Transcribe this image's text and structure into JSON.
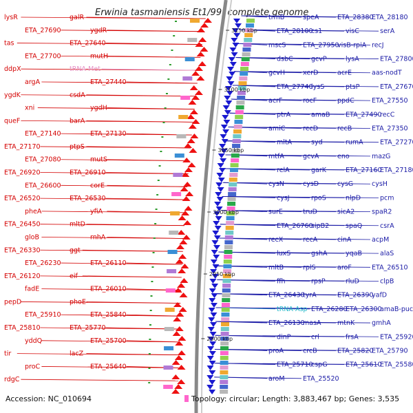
{
  "title": "Erwinia tasmaniensis Et1/99, complete genome",
  "accession": "Accession: NC_010694",
  "topology": "Topology: circular; Length: 3,883,467 bp; Genes: 3,535",
  "kbp_marks": [
    "3150 kbp",
    "3100 kbp",
    "3050 kbp",
    "3000 kbp",
    "2950 kbp",
    "2900 kbp"
  ],
  "left_labels": [
    {
      "text": "lysR",
      "color": "red"
    },
    {
      "text": "galR",
      "color": "red"
    },
    {
      "text": "ETA_27690",
      "color": "red"
    },
    {
      "text": "ygdR",
      "color": "red"
    },
    {
      "text": "tas",
      "color": "red"
    },
    {
      "text": "ETA_27640",
      "color": "red"
    },
    {
      "text": "ETA_27700",
      "color": "red"
    },
    {
      "text": "mutH",
      "color": "red"
    },
    {
      "text": "ddpX",
      "color": "red"
    },
    {
      "text": "tRNA-Met",
      "color": "pink"
    },
    {
      "text": "argA",
      "color": "red"
    },
    {
      "text": "ETA_27440",
      "color": "red"
    },
    {
      "text": "ygdK",
      "color": "red"
    },
    {
      "text": "csdA",
      "color": "red"
    },
    {
      "text": "xni",
      "color": "red"
    },
    {
      "text": "ygdH",
      "color": "red"
    },
    {
      "text": "queF",
      "color": "red"
    },
    {
      "text": "barA",
      "color": "red"
    },
    {
      "text": "ETA_27140",
      "color": "red"
    },
    {
      "text": "ETA_27130",
      "color": "red"
    },
    {
      "text": "ETA_27170",
      "color": "red"
    },
    {
      "text": "ptpS",
      "color": "red"
    },
    {
      "text": "ETA_27080",
      "color": "red"
    },
    {
      "text": "mutS",
      "color": "red"
    },
    {
      "text": "ETA_26920",
      "color": "red"
    },
    {
      "text": "ETA_26910",
      "color": "red"
    },
    {
      "text": "ETA_26600",
      "color": "red"
    },
    {
      "text": "corE",
      "color": "red"
    },
    {
      "text": "ETA_26520",
      "color": "red"
    },
    {
      "text": "ETA_26530",
      "color": "red"
    },
    {
      "text": "pheA",
      "color": "red"
    },
    {
      "text": "yfiA",
      "color": "red"
    },
    {
      "text": "ETA_26450",
      "color": "red"
    },
    {
      "text": "mltD",
      "color": "red"
    },
    {
      "text": "gloB",
      "color": "red"
    },
    {
      "text": "rnhA",
      "color": "red"
    },
    {
      "text": "ETA_26330",
      "color": "red"
    },
    {
      "text": "ggt",
      "color": "red"
    },
    {
      "text": "ETA_26230",
      "color": "red"
    },
    {
      "text": "ETA_26110",
      "color": "red"
    },
    {
      "text": "ETA_26120",
      "color": "red"
    },
    {
      "text": "eif",
      "color": "red"
    },
    {
      "text": "fadE",
      "color": "red"
    },
    {
      "text": "ETA_26010",
      "color": "red"
    },
    {
      "text": "pepD",
      "color": "red"
    },
    {
      "text": "phoE",
      "color": "red"
    },
    {
      "text": "ETA_25910",
      "color": "red"
    },
    {
      "text": "ETA_25840",
      "color": "red"
    },
    {
      "text": "ETA_25810",
      "color": "red"
    },
    {
      "text": "ETA_25770",
      "color": "red"
    },
    {
      "text": "yddQ",
      "color": "red"
    },
    {
      "text": "ETA_25700",
      "color": "red"
    },
    {
      "text": "tir",
      "color": "red"
    },
    {
      "text": "lacZ",
      "color": "red"
    },
    {
      "text": "proC",
      "color": "red"
    },
    {
      "text": "ETA_25640",
      "color": "red"
    },
    {
      "text": "rdgC",
      "color": "red"
    }
  ],
  "right_labels": [
    {
      "text": "trmB",
      "color": "blue"
    },
    {
      "text": "speA",
      "color": "blue"
    },
    {
      "text": "ETA_28380",
      "color": "blue"
    },
    {
      "text": "ETA_28180",
      "color": "blue"
    },
    {
      "text": "ETA_28100",
      "color": "blue"
    },
    {
      "text": "cs1",
      "color": "blue"
    },
    {
      "text": "visC",
      "color": "blue"
    },
    {
      "text": "serA",
      "color": "blue"
    },
    {
      "text": "mscS",
      "color": "blue"
    },
    {
      "text": "ETA_27950",
      "color": "blue"
    },
    {
      "text": "visB-rpiA",
      "color": "blue"
    },
    {
      "text": "recJ",
      "color": "blue"
    },
    {
      "text": "dsbC",
      "color": "blue"
    },
    {
      "text": "gcvP",
      "color": "blue"
    },
    {
      "text": "lysA",
      "color": "blue"
    },
    {
      "text": "ETA_27800",
      "color": "blue"
    },
    {
      "text": "gcvH",
      "color": "blue"
    },
    {
      "text": "xerD",
      "color": "blue"
    },
    {
      "text": "acrE",
      "color": "blue"
    },
    {
      "text": "aas-nodT",
      "color": "blue"
    },
    {
      "text": "ETA_27740",
      "color": "blue"
    },
    {
      "text": "lysS",
      "color": "blue"
    },
    {
      "text": "ptsP",
      "color": "blue"
    },
    {
      "text": "ETA_27670",
      "color": "blue"
    },
    {
      "text": "acrF",
      "color": "blue"
    },
    {
      "text": "rocF",
      "color": "blue"
    },
    {
      "text": "ppdC",
      "color": "blue"
    },
    {
      "text": "ETA_27550",
      "color": "blue"
    },
    {
      "text": "ptrA",
      "color": "blue"
    },
    {
      "text": "amaB",
      "color": "blue"
    },
    {
      "text": "ETA_27490",
      "color": "blue"
    },
    {
      "text": "recC",
      "color": "blue"
    },
    {
      "text": "amiC",
      "color": "blue"
    },
    {
      "text": "recD",
      "color": "blue"
    },
    {
      "text": "recB",
      "color": "blue"
    },
    {
      "text": "ETA_27350",
      "color": "blue"
    },
    {
      "text": "mltA",
      "color": "blue"
    },
    {
      "text": "syd",
      "color": "blue"
    },
    {
      "text": "rumA",
      "color": "blue"
    },
    {
      "text": "ETA_27270",
      "color": "blue"
    },
    {
      "text": "mtfA",
      "color": "blue"
    },
    {
      "text": "gcvA",
      "color": "blue"
    },
    {
      "text": "eno",
      "color": "blue"
    },
    {
      "text": "mazG",
      "color": "blue"
    },
    {
      "text": "relA",
      "color": "blue"
    },
    {
      "text": "garK",
      "color": "blue"
    },
    {
      "text": "ETA_27160",
      "color": "blue"
    },
    {
      "text": "ETA_27180",
      "color": "blue"
    },
    {
      "text": "cysN",
      "color": "blue"
    },
    {
      "text": "cysD",
      "color": "blue"
    },
    {
      "text": "cysG",
      "color": "blue"
    },
    {
      "text": "cysH",
      "color": "blue"
    },
    {
      "text": "cysJ",
      "color": "blue"
    },
    {
      "text": "rpoS",
      "color": "blue"
    },
    {
      "text": "nlpD",
      "color": "blue"
    },
    {
      "text": "pcm",
      "color": "blue"
    },
    {
      "text": "surE",
      "color": "blue"
    },
    {
      "text": "truD",
      "color": "blue"
    },
    {
      "text": "sicA2",
      "color": "blue"
    },
    {
      "text": "spaR2",
      "color": "blue"
    },
    {
      "text": "ETA_26760",
      "color": "blue"
    },
    {
      "text": "sipB2",
      "color": "blue"
    },
    {
      "text": "spaQ",
      "color": "blue"
    },
    {
      "text": "csrA",
      "color": "blue"
    },
    {
      "text": "recX",
      "color": "blue"
    },
    {
      "text": "recA",
      "color": "blue"
    },
    {
      "text": "cinA",
      "color": "blue"
    },
    {
      "text": "acpM",
      "color": "blue"
    },
    {
      "text": "luxS",
      "color": "blue"
    },
    {
      "text": "gshA",
      "color": "blue"
    },
    {
      "text": "yqaB",
      "color": "blue"
    },
    {
      "text": "alaS",
      "color": "blue"
    },
    {
      "text": "mltB",
      "color": "blue"
    },
    {
      "text": "rplS",
      "color": "blue"
    },
    {
      "text": "aroF",
      "color": "blue"
    },
    {
      "text": "ETA_26510",
      "color": "blue"
    },
    {
      "text": "ffh",
      "color": "blue"
    },
    {
      "text": "rpsP",
      "color": "blue"
    },
    {
      "text": "rluD",
      "color": "blue"
    },
    {
      "text": "clpB",
      "color": "blue"
    },
    {
      "text": "ETA_26430",
      "color": "blue"
    },
    {
      "text": "tyrA",
      "color": "blue"
    },
    {
      "text": "ETA_26390",
      "color": "blue"
    },
    {
      "text": "yafD",
      "color": "blue"
    },
    {
      "text": "tRNA-Asp",
      "color": "cyan"
    },
    {
      "text": "ETA_26280",
      "color": "blue"
    },
    {
      "text": "ETA_26300",
      "color": "blue"
    },
    {
      "text": "amaB-pucG",
      "color": "blue"
    },
    {
      "text": "ETA_26130",
      "color": "blue"
    },
    {
      "text": "masA",
      "color": "blue"
    },
    {
      "text": "mtnK",
      "color": "blue"
    },
    {
      "text": "gmhA",
      "color": "blue"
    },
    {
      "text": "dinP",
      "color": "blue"
    },
    {
      "text": "crl",
      "color": "blue"
    },
    {
      "text": "frsA",
      "color": "blue"
    },
    {
      "text": "ETA_25920",
      "color": "blue"
    },
    {
      "text": "proA",
      "color": "blue"
    },
    {
      "text": "crcB",
      "color": "blue"
    },
    {
      "text": "ETA_25820",
      "color": "blue"
    },
    {
      "text": "ETA_25790",
      "color": "blue"
    },
    {
      "text": "ETA_25710",
      "color": "blue"
    },
    {
      "text": "cspG",
      "color": "blue"
    },
    {
      "text": "ETA_25610",
      "color": "blue"
    },
    {
      "text": "ETA_25580",
      "color": "blue"
    },
    {
      "text": "aroM",
      "color": "blue"
    },
    {
      "text": "ETA_25520",
      "color": "blue"
    }
  ]
}
